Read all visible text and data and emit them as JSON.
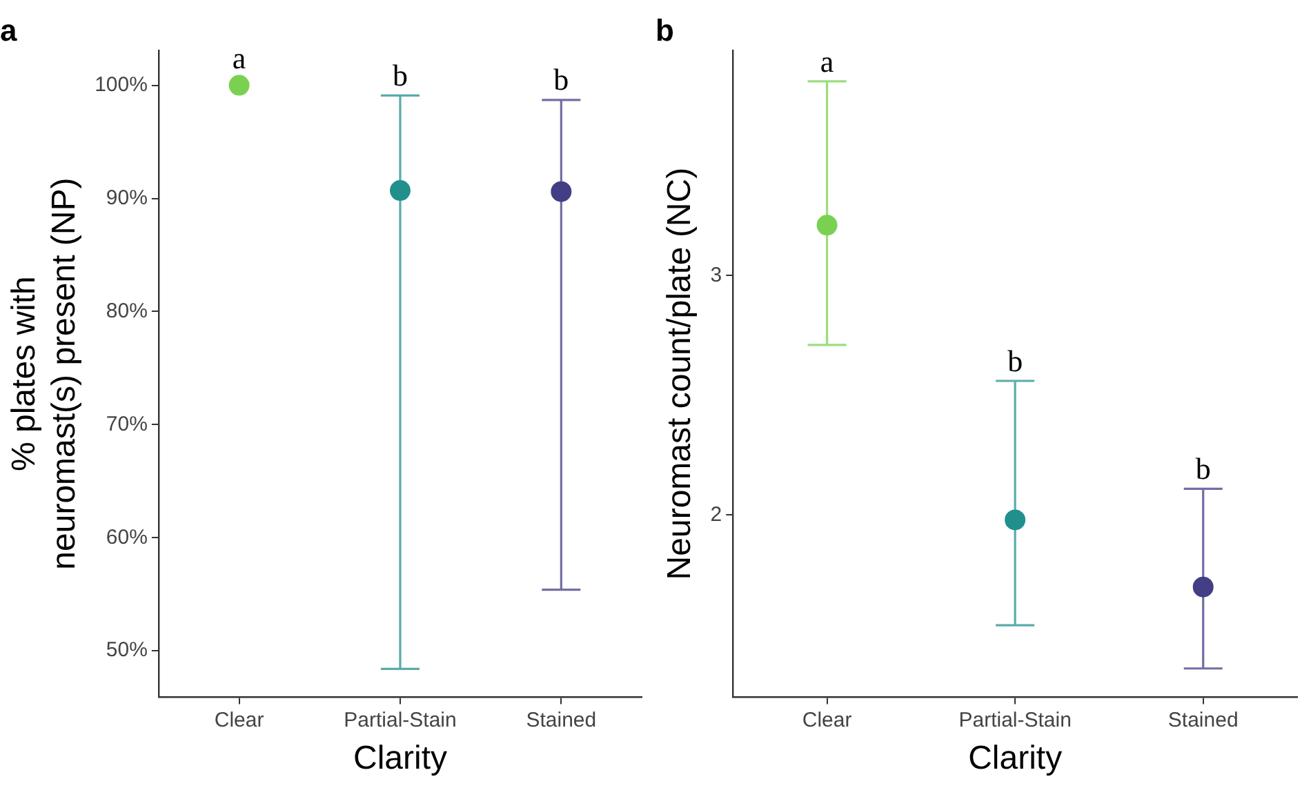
{
  "chart_data": [
    {
      "type": "scatter",
      "title": "a",
      "categories": [
        "Clear",
        "Partial-Stain",
        "Stained"
      ],
      "values": [
        100,
        90.7,
        90.6
      ],
      "colors": [
        "#7ad151",
        "#21908d",
        "#433e85"
      ],
      "errors": [
        null,
        [
          48.4,
          99.1
        ],
        [
          55.4,
          98.7
        ]
      ],
      "xlabel": "Clarity",
      "ylabel": "% plates with neuromast(s) present (NP)",
      "ylim": [
        45.9,
        103.1
      ],
      "yticks": [
        {
          "value": 50,
          "label": "50%"
        },
        {
          "value": 60,
          "label": "60%"
        },
        {
          "value": 70,
          "label": "70%"
        },
        {
          "value": 80,
          "label": "80%"
        },
        {
          "value": 90,
          "label": "90%"
        },
        {
          "value": 100,
          "label": "100%"
        }
      ],
      "annotations": [
        {
          "text": "a",
          "x": "Clear",
          "y": 100.6
        },
        {
          "text": "b",
          "x": "Partial-Stain",
          "y": 99.1
        },
        {
          "text": "b",
          "x": "Stained",
          "y": 98.7
        }
      ],
      "grid": false,
      "legend": false,
      "marker": "circle"
    },
    {
      "type": "scatter",
      "title": "b",
      "categories": [
        "Clear",
        "Partial-Stain",
        "Stained"
      ],
      "values": [
        3.21,
        1.98,
        1.7
      ],
      "colors": [
        "#7ad151",
        "#21908d",
        "#433e85"
      ],
      "errors": [
        [
          2.71,
          3.81
        ],
        [
          1.54,
          2.56
        ],
        [
          1.36,
          2.11
        ]
      ],
      "xlabel": "Clarity",
      "ylabel": "Neuromast count/plate (NC)",
      "ylim": [
        1.24,
        3.94
      ],
      "yticks": [
        2,
        3
      ],
      "annotations": [
        {
          "text": "a",
          "x": "Clear",
          "y": 3.81
        },
        {
          "text": "b",
          "x": "Partial-Stain",
          "y": 2.56
        },
        {
          "text": "b",
          "x": "Stained",
          "y": 2.11
        }
      ],
      "grid": false,
      "legend": false,
      "marker": "circle"
    }
  ]
}
